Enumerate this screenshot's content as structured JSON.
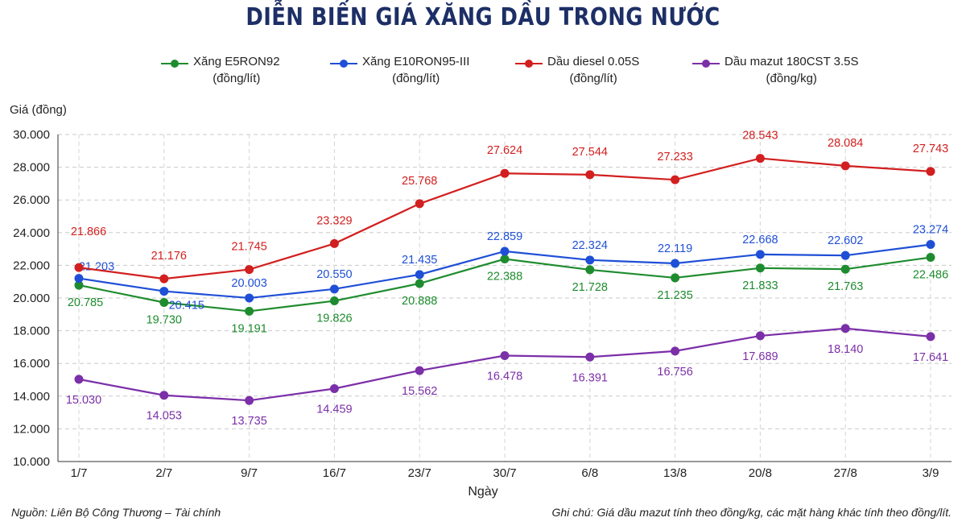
{
  "title": "DIỄN BIẾN GIÁ XĂNG DẦU TRONG NƯỚC",
  "footer": {
    "source": "Nguồn: Liên Bộ Công Thương – Tài chính",
    "note": "Ghi chú: Giá dầu mazut tính theo đồng/kg, các mặt hàng khác tính theo đồng/lít."
  },
  "chart_data": {
    "type": "line",
    "title": "DIỄN BIẾN GIÁ XĂNG DẦU TRONG NƯỚC",
    "xlabel": "Ngày",
    "ylabel": "Giá (đồng)",
    "ylim": [
      10000,
      30000
    ],
    "yticks": [
      10000,
      12000,
      14000,
      16000,
      18000,
      20000,
      22000,
      24000,
      26000,
      28000,
      30000
    ],
    "ytick_labels": [
      "10.000",
      "12.000",
      "14.000",
      "16.000",
      "18.000",
      "20.000",
      "22.000",
      "24.000",
      "26.000",
      "28.000",
      "30.000"
    ],
    "grid": true,
    "legend_position": "top",
    "categories": [
      "1/7",
      "2/7",
      "9/7",
      "16/7",
      "23/7",
      "30/7",
      "6/8",
      "13/8",
      "20/8",
      "27/8",
      "3/9"
    ],
    "series": [
      {
        "name": "Xăng E5RON92",
        "unit": "(đồng/lít)",
        "color": "#1e8c2e",
        "values": [
          20785,
          19730,
          19191,
          19826,
          20888,
          22388,
          21728,
          21235,
          21833,
          21763,
          22486
        ],
        "labels": [
          "20.785",
          "19.730",
          "19.191",
          "19.826",
          "20.888",
          "22.388",
          "21.728",
          "21.235",
          "21.833",
          "21.763",
          "22.486"
        ]
      },
      {
        "name": "Xăng E10RON95-III",
        "unit": "(đồng/lít)",
        "color": "#1f4fd6",
        "values": [
          21203,
          20415,
          20003,
          20550,
          21435,
          22859,
          22324,
          22119,
          22668,
          22602,
          23274
        ],
        "labels": [
          "21.203",
          "20.415",
          "20.003",
          "20.550",
          "21.435",
          "22.859",
          "22.324",
          "22.119",
          "22.668",
          "22.602",
          "23.274"
        ]
      },
      {
        "name": "Dầu diesel 0.05S",
        "unit": "(đồng/lít)",
        "color": "#d21f1f",
        "values": [
          21866,
          21176,
          21745,
          23329,
          25768,
          27624,
          27544,
          27233,
          28543,
          28084,
          27743
        ],
        "labels": [
          "21.866",
          "21.176",
          "21.745",
          "23.329",
          "25.768",
          "27.624",
          "27.544",
          "27.233",
          "28.543",
          "28.084",
          "27.743"
        ]
      },
      {
        "name": "Dầu mazut 180CST 3.5S",
        "unit": "(đồng/kg)",
        "color": "#7b2fa8",
        "values": [
          15030,
          14053,
          13735,
          14459,
          15562,
          16478,
          16391,
          16756,
          17689,
          18140,
          17641
        ],
        "labels": [
          "15.030",
          "14.053",
          "13.735",
          "14.459",
          "15.562",
          "16.478",
          "16.391",
          "16.756",
          "17.689",
          "18.140",
          "17.641"
        ]
      }
    ]
  }
}
